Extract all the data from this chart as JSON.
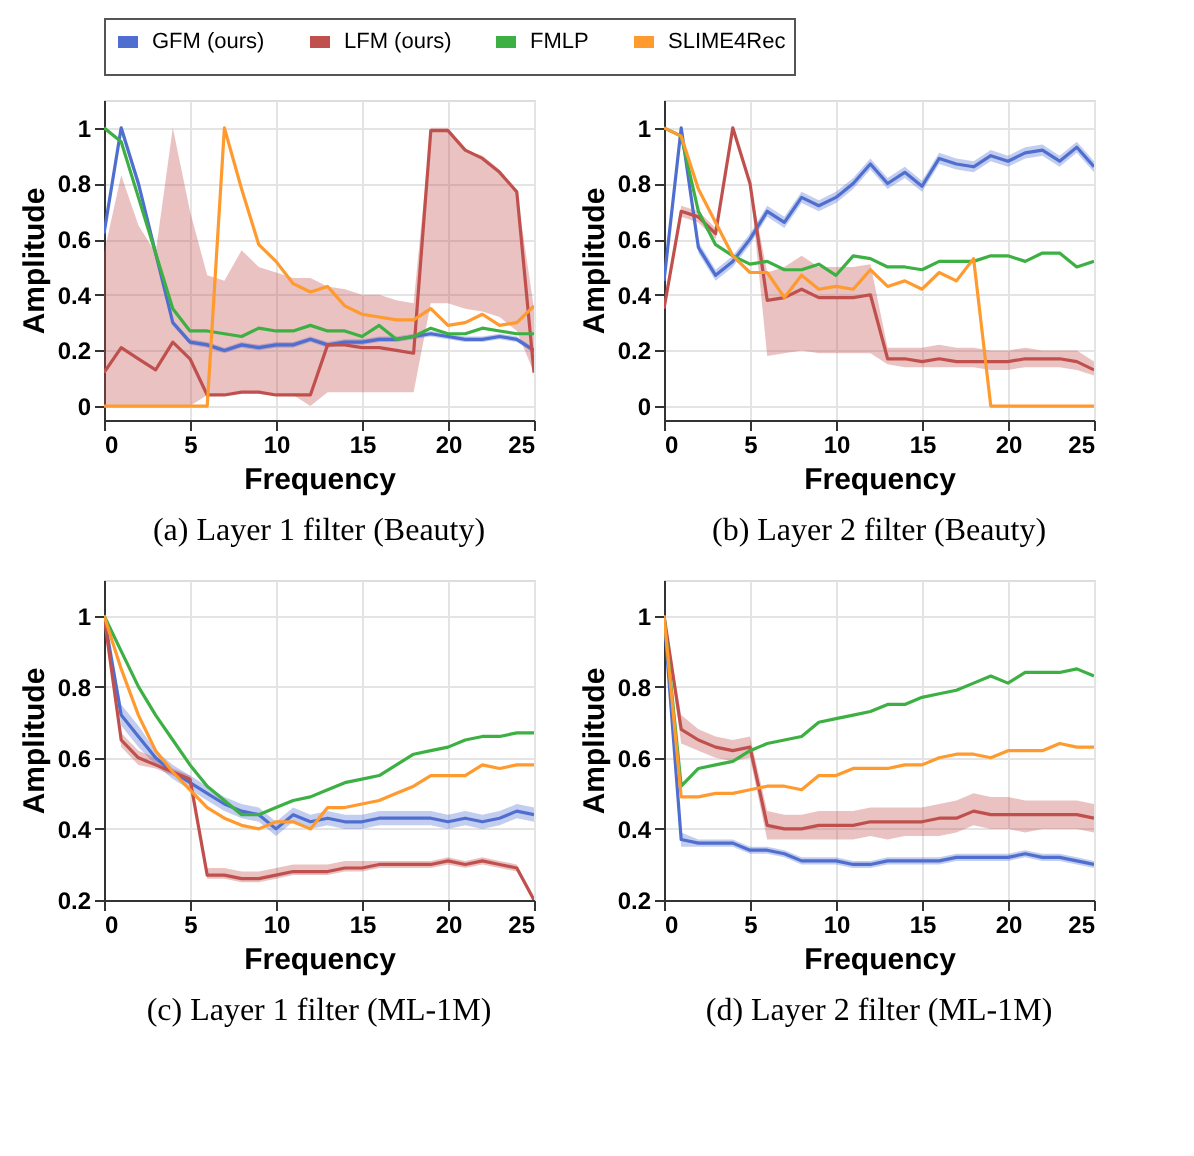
{
  "chart_data": [
    {
      "type": "line",
      "title": "(a) Layer 1 filter (Beauty)",
      "xlabel": "Frequency",
      "ylabel": "Amplitude",
      "xlim": [
        0,
        25
      ],
      "xticks": [
        0,
        5,
        10,
        15,
        20,
        25
      ],
      "ylim": [
        -0.05,
        1.1
      ],
      "yticks": [
        0,
        0.2,
        0.4,
        0.6,
        0.8,
        1
      ],
      "grid": true,
      "legend": "top",
      "x": [
        0,
        1,
        2,
        3,
        4,
        5,
        6,
        7,
        8,
        9,
        10,
        11,
        12,
        13,
        14,
        15,
        16,
        17,
        18,
        19,
        20,
        21,
        22,
        23,
        24,
        25
      ],
      "series": [
        {
          "name": "GFM (ours)",
          "color": "#4f6fd0",
          "values": [
            0.62,
            1.0,
            0.8,
            0.55,
            0.3,
            0.23,
            0.22,
            0.2,
            0.22,
            0.21,
            0.22,
            0.22,
            0.24,
            0.22,
            0.23,
            0.23,
            0.24,
            0.24,
            0.25,
            0.26,
            0.25,
            0.24,
            0.24,
            0.25,
            0.24,
            0.2
          ],
          "lower": [
            0.6,
            0.98,
            0.78,
            0.53,
            0.29,
            0.22,
            0.21,
            0.19,
            0.21,
            0.2,
            0.21,
            0.21,
            0.23,
            0.21,
            0.22,
            0.22,
            0.23,
            0.23,
            0.24,
            0.25,
            0.24,
            0.23,
            0.23,
            0.24,
            0.23,
            0.19
          ],
          "upper": [
            0.64,
            1.0,
            0.82,
            0.57,
            0.31,
            0.24,
            0.23,
            0.21,
            0.23,
            0.22,
            0.23,
            0.23,
            0.25,
            0.23,
            0.24,
            0.24,
            0.25,
            0.25,
            0.26,
            0.27,
            0.26,
            0.25,
            0.25,
            0.26,
            0.25,
            0.21
          ]
        },
        {
          "name": "LFM (ours)",
          "color": "#c0504d",
          "values": [
            0.12,
            0.21,
            0.17,
            0.13,
            0.23,
            0.17,
            0.04,
            0.04,
            0.05,
            0.05,
            0.04,
            0.04,
            0.04,
            0.22,
            0.22,
            0.21,
            0.21,
            0.2,
            0.19,
            0.99,
            0.99,
            0.92,
            0.89,
            0.84,
            0.77,
            0.12
          ],
          "lower": [
            0,
            0,
            0,
            0,
            0,
            0,
            0.04,
            0.04,
            0.05,
            0.05,
            0.04,
            0.04,
            0.0,
            0.05,
            0.05,
            0.05,
            0.05,
            0.05,
            0.05,
            0.37,
            0.37,
            0.35,
            0.34,
            0.32,
            0.27,
            0.12
          ],
          "upper": [
            0.55,
            0.83,
            0.65,
            0.55,
            1.0,
            0.7,
            0.47,
            0.45,
            0.56,
            0.5,
            0.48,
            0.46,
            0.46,
            0.43,
            0.42,
            0.4,
            0.4,
            0.38,
            0.37,
            1.0,
            1.0,
            0.92,
            0.9,
            0.85,
            0.77,
            0.35
          ]
        },
        {
          "name": "FMLP",
          "color": "#3cb043",
          "values": [
            1.0,
            0.95,
            0.75,
            0.55,
            0.35,
            0.27,
            0.27,
            0.26,
            0.25,
            0.28,
            0.27,
            0.27,
            0.29,
            0.27,
            0.27,
            0.25,
            0.29,
            0.24,
            0.25,
            0.28,
            0.26,
            0.26,
            0.28,
            0.27,
            0.26,
            0.26
          ]
        },
        {
          "name": "SLIME4Rec",
          "color": "#ff9a2e",
          "values": [
            0,
            0,
            0,
            0,
            0,
            0,
            0,
            1.0,
            0.78,
            0.58,
            0.52,
            0.44,
            0.41,
            0.43,
            0.36,
            0.33,
            0.32,
            0.31,
            0.31,
            0.35,
            0.29,
            0.3,
            0.33,
            0.29,
            0.3,
            0.36
          ]
        }
      ]
    },
    {
      "type": "line",
      "title": "(b) Layer 2 filter (Beauty)",
      "xlabel": "Frequency",
      "ylabel": "Amplitude",
      "xlim": [
        0,
        25
      ],
      "xticks": [
        0,
        5,
        10,
        15,
        20,
        25
      ],
      "ylim": [
        -0.05,
        1.1
      ],
      "yticks": [
        0,
        0.2,
        0.4,
        0.6,
        0.8,
        1
      ],
      "grid": true,
      "legend": "top",
      "x": [
        0,
        1,
        2,
        3,
        4,
        5,
        6,
        7,
        8,
        9,
        10,
        11,
        12,
        13,
        14,
        15,
        16,
        17,
        18,
        19,
        20,
        21,
        22,
        23,
        24,
        25
      ],
      "series": [
        {
          "name": "GFM (ours)",
          "color": "#4f6fd0",
          "values": [
            0.45,
            1.0,
            0.57,
            0.47,
            0.52,
            0.6,
            0.7,
            0.66,
            0.75,
            0.72,
            0.75,
            0.8,
            0.87,
            0.8,
            0.84,
            0.79,
            0.89,
            0.87,
            0.86,
            0.9,
            0.88,
            0.91,
            0.92,
            0.88,
            0.93,
            0.86
          ],
          "lower": [
            0.43,
            0.98,
            0.55,
            0.45,
            0.5,
            0.58,
            0.68,
            0.64,
            0.73,
            0.7,
            0.73,
            0.78,
            0.85,
            0.78,
            0.82,
            0.77,
            0.87,
            0.85,
            0.84,
            0.88,
            0.86,
            0.89,
            0.9,
            0.86,
            0.91,
            0.84
          ],
          "upper": [
            0.47,
            1.0,
            0.59,
            0.49,
            0.54,
            0.62,
            0.72,
            0.68,
            0.77,
            0.74,
            0.77,
            0.82,
            0.89,
            0.82,
            0.86,
            0.81,
            0.91,
            0.89,
            0.88,
            0.92,
            0.9,
            0.93,
            0.94,
            0.9,
            0.95,
            0.88
          ]
        },
        {
          "name": "LFM (ours)",
          "color": "#c0504d",
          "values": [
            0.35,
            0.7,
            0.68,
            0.62,
            1.0,
            0.8,
            0.38,
            0.39,
            0.42,
            0.39,
            0.39,
            0.39,
            0.4,
            0.17,
            0.17,
            0.16,
            0.17,
            0.16,
            0.16,
            0.16,
            0.16,
            0.17,
            0.17,
            0.17,
            0.16,
            0.13
          ],
          "lower": [
            0.35,
            0.68,
            0.66,
            0.6,
            1.0,
            0.8,
            0.18,
            0.19,
            0.2,
            0.19,
            0.19,
            0.19,
            0.19,
            0.15,
            0.14,
            0.14,
            0.14,
            0.14,
            0.14,
            0.13,
            0.13,
            0.14,
            0.14,
            0.14,
            0.13,
            0.11
          ],
          "upper": [
            0.35,
            0.72,
            0.7,
            0.64,
            1.0,
            0.8,
            0.48,
            0.5,
            0.54,
            0.5,
            0.5,
            0.5,
            0.51,
            0.21,
            0.21,
            0.21,
            0.22,
            0.21,
            0.21,
            0.2,
            0.2,
            0.21,
            0.2,
            0.2,
            0.2,
            0.16
          ]
        },
        {
          "name": "FMLP",
          "color": "#3cb043",
          "values": [
            1.0,
            0.97,
            0.7,
            0.58,
            0.54,
            0.51,
            0.52,
            0.49,
            0.49,
            0.51,
            0.47,
            0.54,
            0.53,
            0.5,
            0.5,
            0.49,
            0.52,
            0.52,
            0.52,
            0.54,
            0.54,
            0.52,
            0.55,
            0.55,
            0.5,
            0.52
          ]
        },
        {
          "name": "SLIME4Rec",
          "color": "#ff9a2e",
          "values": [
            1.0,
            0.97,
            0.78,
            0.66,
            0.54,
            0.48,
            0.48,
            0.39,
            0.47,
            0.42,
            0.43,
            0.42,
            0.49,
            0.43,
            0.45,
            0.42,
            0.48,
            0.45,
            0.53,
            0,
            0,
            0,
            0,
            0,
            0,
            0
          ]
        }
      ]
    },
    {
      "type": "line",
      "title": "(c) Layer 1 filter (ML-1M)",
      "xlabel": "Frequency",
      "ylabel": "Amplitude",
      "xlim": [
        0,
        25
      ],
      "xticks": [
        0,
        5,
        10,
        15,
        20,
        25
      ],
      "ylim": [
        0.2,
        1.1
      ],
      "yticks": [
        0.2,
        0.4,
        0.6,
        0.8,
        1
      ],
      "grid": true,
      "legend": "top",
      "x": [
        0,
        1,
        2,
        3,
        4,
        5,
        6,
        7,
        8,
        9,
        10,
        11,
        12,
        13,
        14,
        15,
        16,
        17,
        18,
        19,
        20,
        21,
        22,
        23,
        24,
        25
      ],
      "series": [
        {
          "name": "GFM (ours)",
          "color": "#4f6fd0",
          "values": [
            1.0,
            0.72,
            0.66,
            0.6,
            0.56,
            0.53,
            0.5,
            0.47,
            0.45,
            0.44,
            0.4,
            0.44,
            0.42,
            0.43,
            0.42,
            0.42,
            0.43,
            0.43,
            0.43,
            0.43,
            0.42,
            0.43,
            0.42,
            0.43,
            0.45,
            0.44
          ],
          "lower": [
            1.0,
            0.69,
            0.63,
            0.58,
            0.54,
            0.51,
            0.48,
            0.45,
            0.43,
            0.42,
            0.38,
            0.42,
            0.4,
            0.41,
            0.4,
            0.4,
            0.41,
            0.41,
            0.41,
            0.41,
            0.4,
            0.41,
            0.4,
            0.41,
            0.43,
            0.42
          ],
          "upper": [
            1.0,
            0.75,
            0.69,
            0.62,
            0.58,
            0.55,
            0.52,
            0.49,
            0.47,
            0.46,
            0.42,
            0.46,
            0.44,
            0.45,
            0.44,
            0.44,
            0.45,
            0.45,
            0.45,
            0.45,
            0.44,
            0.45,
            0.44,
            0.45,
            0.47,
            0.46
          ]
        },
        {
          "name": "LFM (ours)",
          "color": "#c0504d",
          "values": [
            1.0,
            0.65,
            0.6,
            0.58,
            0.56,
            0.54,
            0.27,
            0.27,
            0.26,
            0.26,
            0.27,
            0.28,
            0.28,
            0.28,
            0.29,
            0.29,
            0.3,
            0.3,
            0.3,
            0.3,
            0.31,
            0.3,
            0.31,
            0.3,
            0.29,
            0.2
          ],
          "lower": [
            1.0,
            0.63,
            0.58,
            0.57,
            0.55,
            0.53,
            0.26,
            0.26,
            0.25,
            0.25,
            0.26,
            0.27,
            0.27,
            0.27,
            0.28,
            0.28,
            0.29,
            0.29,
            0.29,
            0.29,
            0.3,
            0.29,
            0.3,
            0.29,
            0.28,
            0.2
          ],
          "upper": [
            1.0,
            0.67,
            0.62,
            0.6,
            0.57,
            0.55,
            0.29,
            0.29,
            0.28,
            0.28,
            0.29,
            0.3,
            0.3,
            0.3,
            0.31,
            0.31,
            0.31,
            0.31,
            0.31,
            0.31,
            0.32,
            0.31,
            0.32,
            0.31,
            0.3,
            0.2
          ]
        },
        {
          "name": "FMLP",
          "color": "#3cb043",
          "values": [
            1.0,
            0.9,
            0.8,
            0.72,
            0.65,
            0.58,
            0.52,
            0.48,
            0.44,
            0.44,
            0.46,
            0.48,
            0.49,
            0.51,
            0.53,
            0.54,
            0.55,
            0.58,
            0.61,
            0.62,
            0.63,
            0.65,
            0.66,
            0.66,
            0.67,
            0.67
          ]
        },
        {
          "name": "SLIME4Rec",
          "color": "#ff9a2e",
          "values": [
            1.0,
            0.85,
            0.72,
            0.62,
            0.56,
            0.51,
            0.46,
            0.43,
            0.41,
            0.4,
            0.42,
            0.42,
            0.4,
            0.46,
            0.46,
            0.47,
            0.48,
            0.5,
            0.52,
            0.55,
            0.55,
            0.55,
            0.58,
            0.57,
            0.58,
            0.58
          ]
        }
      ]
    },
    {
      "type": "line",
      "title": "(d) Layer 2 filter (ML-1M)",
      "xlabel": "Frequency",
      "ylabel": "Amplitude",
      "xlim": [
        0,
        25
      ],
      "xticks": [
        0,
        5,
        10,
        15,
        20,
        25
      ],
      "ylim": [
        0.2,
        1.1
      ],
      "yticks": [
        0.2,
        0.4,
        0.6,
        0.8,
        1
      ],
      "grid": true,
      "legend": "top",
      "x": [
        0,
        1,
        2,
        3,
        4,
        5,
        6,
        7,
        8,
        9,
        10,
        11,
        12,
        13,
        14,
        15,
        16,
        17,
        18,
        19,
        20,
        21,
        22,
        23,
        24,
        25
      ],
      "series": [
        {
          "name": "GFM (ours)",
          "color": "#4f6fd0",
          "values": [
            1.0,
            0.37,
            0.36,
            0.36,
            0.36,
            0.34,
            0.34,
            0.33,
            0.31,
            0.31,
            0.31,
            0.3,
            0.3,
            0.31,
            0.31,
            0.31,
            0.31,
            0.32,
            0.32,
            0.32,
            0.32,
            0.33,
            0.32,
            0.32,
            0.31,
            0.3
          ],
          "lower": [
            1.0,
            0.35,
            0.35,
            0.35,
            0.35,
            0.33,
            0.33,
            0.32,
            0.3,
            0.3,
            0.3,
            0.29,
            0.29,
            0.3,
            0.3,
            0.3,
            0.3,
            0.31,
            0.31,
            0.31,
            0.31,
            0.32,
            0.31,
            0.31,
            0.3,
            0.29
          ],
          "upper": [
            1.0,
            0.39,
            0.37,
            0.37,
            0.37,
            0.35,
            0.35,
            0.34,
            0.32,
            0.32,
            0.32,
            0.31,
            0.31,
            0.32,
            0.32,
            0.32,
            0.32,
            0.33,
            0.33,
            0.33,
            0.33,
            0.34,
            0.33,
            0.33,
            0.32,
            0.31
          ]
        },
        {
          "name": "LFM (ours)",
          "color": "#c0504d",
          "values": [
            1.0,
            0.68,
            0.65,
            0.63,
            0.62,
            0.63,
            0.41,
            0.4,
            0.4,
            0.41,
            0.41,
            0.41,
            0.42,
            0.42,
            0.42,
            0.42,
            0.43,
            0.43,
            0.45,
            0.44,
            0.44,
            0.44,
            0.44,
            0.44,
            0.44,
            0.43
          ],
          "lower": [
            1.0,
            0.64,
            0.62,
            0.6,
            0.59,
            0.6,
            0.37,
            0.37,
            0.37,
            0.37,
            0.37,
            0.37,
            0.38,
            0.37,
            0.38,
            0.38,
            0.38,
            0.39,
            0.41,
            0.4,
            0.4,
            0.39,
            0.4,
            0.4,
            0.4,
            0.39
          ],
          "upper": [
            1.0,
            0.72,
            0.68,
            0.66,
            0.65,
            0.66,
            0.45,
            0.44,
            0.44,
            0.45,
            0.45,
            0.45,
            0.46,
            0.46,
            0.46,
            0.46,
            0.47,
            0.48,
            0.5,
            0.49,
            0.49,
            0.48,
            0.48,
            0.48,
            0.48,
            0.47
          ]
        },
        {
          "name": "FMLP",
          "color": "#3cb043",
          "values": [
            1.0,
            0.52,
            0.57,
            0.58,
            0.59,
            0.62,
            0.64,
            0.65,
            0.66,
            0.7,
            0.71,
            0.72,
            0.73,
            0.75,
            0.75,
            0.77,
            0.78,
            0.79,
            0.81,
            0.83,
            0.81,
            0.84,
            0.84,
            0.84,
            0.85,
            0.83
          ]
        },
        {
          "name": "SLIME4Rec",
          "color": "#ff9a2e",
          "values": [
            1.0,
            0.49,
            0.49,
            0.5,
            0.5,
            0.51,
            0.52,
            0.52,
            0.51,
            0.55,
            0.55,
            0.57,
            0.57,
            0.57,
            0.58,
            0.58,
            0.6,
            0.61,
            0.61,
            0.6,
            0.62,
            0.62,
            0.62,
            0.64,
            0.63,
            0.63
          ]
        }
      ]
    }
  ]
}
